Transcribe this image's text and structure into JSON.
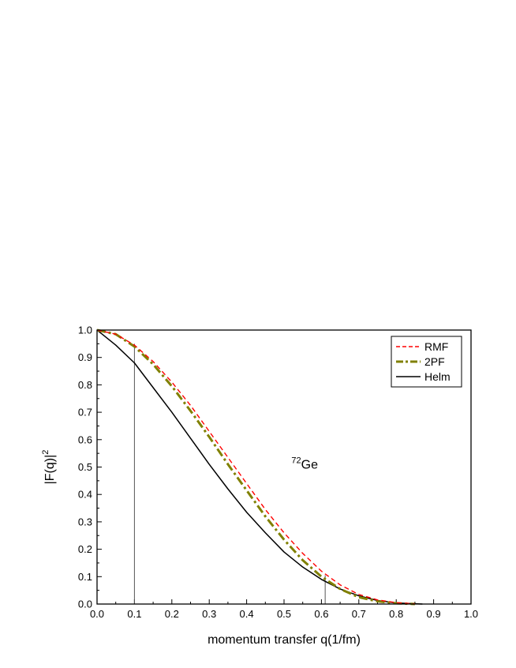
{
  "chart_data": {
    "type": "line",
    "xlabel": "momentum transfer q(1/fm)",
    "ylabel": "|F(q)|",
    "ylabel_sup": "2",
    "xlim": [
      0.0,
      1.0
    ],
    "ylim": [
      0.0,
      1.0
    ],
    "x_ticks": [
      "0.0",
      "0.1",
      "0.2",
      "0.3",
      "0.4",
      "0.5",
      "0.6",
      "0.7",
      "0.8",
      "0.9",
      "1.0"
    ],
    "y_ticks": [
      "0.0",
      "0.1",
      "0.2",
      "0.3",
      "0.4",
      "0.5",
      "0.6",
      "0.7",
      "0.8",
      "0.9",
      "1.0"
    ],
    "grid": false,
    "legend_position": "top-right",
    "annotation": {
      "sup": "72",
      "text": "Ge",
      "x": 0.6,
      "y": 0.5
    },
    "reference_lines": [
      {
        "x": 0.1,
        "y_top": 0.95
      },
      {
        "x": 0.61,
        "y_top": 0.105
      }
    ],
    "series": [
      {
        "name": "RMF",
        "style": "dashed",
        "color": "#ff0000",
        "x": [
          0.0,
          0.05,
          0.1,
          0.15,
          0.2,
          0.25,
          0.3,
          0.35,
          0.4,
          0.45,
          0.5,
          0.55,
          0.6,
          0.65,
          0.7,
          0.75,
          0.8,
          0.85
        ],
        "y": [
          1.0,
          0.985,
          0.945,
          0.885,
          0.81,
          0.725,
          0.63,
          0.535,
          0.44,
          0.345,
          0.26,
          0.185,
          0.12,
          0.07,
          0.035,
          0.015,
          0.005,
          0.001
        ]
      },
      {
        "name": "2PF",
        "style": "dash-dot",
        "color": "#808000",
        "x": [
          0.0,
          0.05,
          0.1,
          0.15,
          0.2,
          0.25,
          0.3,
          0.35,
          0.4,
          0.45,
          0.5,
          0.55,
          0.6,
          0.65,
          0.7,
          0.75,
          0.8,
          0.85
        ],
        "y": [
          1.0,
          0.985,
          0.94,
          0.875,
          0.795,
          0.705,
          0.61,
          0.51,
          0.415,
          0.32,
          0.235,
          0.16,
          0.1,
          0.055,
          0.025,
          0.01,
          0.003,
          0.0
        ]
      },
      {
        "name": "Helm",
        "style": "solid",
        "color": "#000000",
        "x": [
          0.0,
          0.05,
          0.1,
          0.15,
          0.2,
          0.25,
          0.3,
          0.35,
          0.4,
          0.45,
          0.5,
          0.55,
          0.6,
          0.65,
          0.7,
          0.75,
          0.8,
          0.85,
          0.87
        ],
        "y": [
          1.0,
          0.945,
          0.88,
          0.79,
          0.7,
          0.605,
          0.51,
          0.42,
          0.335,
          0.26,
          0.19,
          0.135,
          0.09,
          0.055,
          0.03,
          0.013,
          0.004,
          0.001,
          0.0
        ]
      }
    ]
  }
}
